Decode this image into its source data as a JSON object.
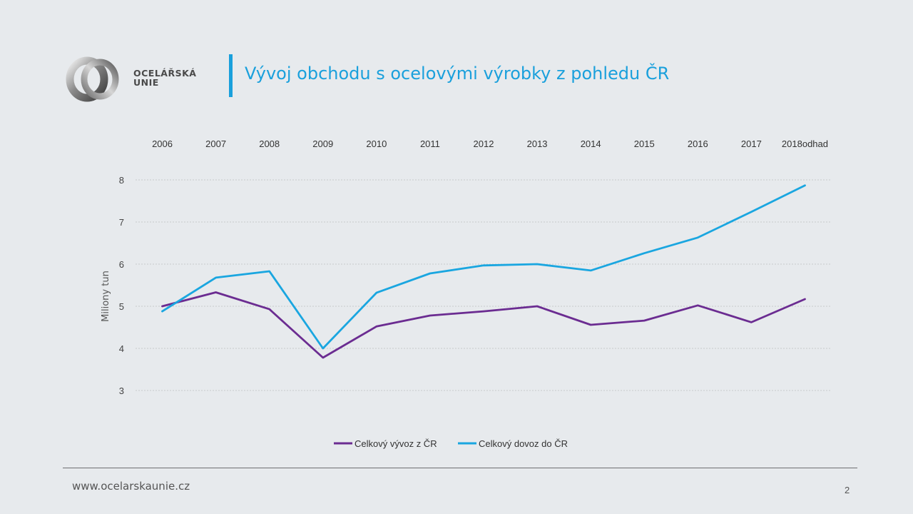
{
  "header": {
    "logo_line1": "OCELÁŘSKÁ",
    "logo_line2": "UNIE",
    "title": "Vývoj obchodu s ocelovými výrobky z pohledu ČR"
  },
  "footer": {
    "url": "www.ocelarskaunie.cz",
    "page_number": "2"
  },
  "colors": {
    "accent": "#1aa0dc",
    "export_series": "#6b2c91",
    "import_series": "#1aa6e0"
  },
  "chart_data": {
    "type": "line",
    "title": "",
    "xlabel": "",
    "ylabel": "Miliony tun",
    "x_axis_position": "top",
    "categories": [
      "2006",
      "2007",
      "2008",
      "2009",
      "2010",
      "2011",
      "2012",
      "2013",
      "2014",
      "2015",
      "2016",
      "2017",
      "2018odhad"
    ],
    "ylim": [
      3,
      8
    ],
    "yticks": [
      3,
      4,
      5,
      6,
      7,
      8
    ],
    "grid": true,
    "legend_position": "bottom",
    "series": [
      {
        "name": "Celkový vývoz z ČR",
        "color": "#6b2c91",
        "values": [
          5.0,
          5.33,
          4.93,
          3.78,
          4.52,
          4.78,
          4.88,
          5.0,
          4.56,
          4.66,
          5.02,
          4.62,
          5.17
        ]
      },
      {
        "name": "Celkový dovoz do ČR",
        "color": "#1aa6e0",
        "values": [
          4.88,
          5.68,
          5.83,
          4.0,
          5.32,
          5.78,
          5.97,
          6.0,
          5.85,
          6.26,
          6.63,
          7.24,
          7.87
        ]
      }
    ]
  }
}
